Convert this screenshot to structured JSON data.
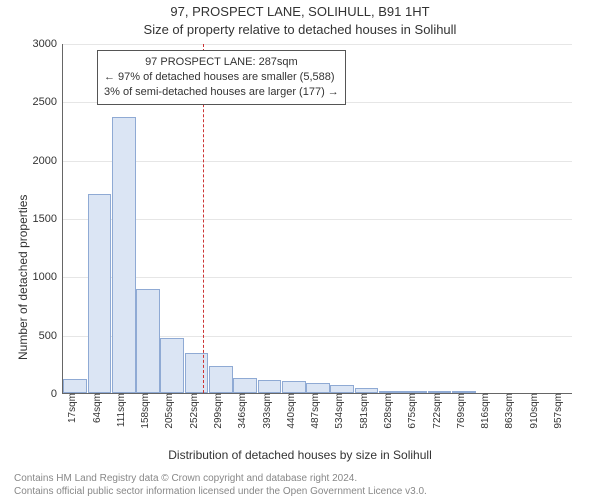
{
  "title_line1": "97, PROSPECT LANE, SOLIHULL, B91 1HT",
  "title_line2": "Size of property relative to detached houses in Solihull",
  "y_axis_label": "Number of detached properties",
  "x_axis_label": "Distribution of detached houses by size in Solihull",
  "footer_line1": "Contains HM Land Registry data © Crown copyright and database right 2024.",
  "footer_line2": "Contains official public sector information licensed under the Open Government Licence v3.0.",
  "chart": {
    "type": "histogram",
    "ylim": [
      0,
      3000
    ],
    "ytick_step": 500,
    "xtick_start": 17,
    "xtick_step": 47,
    "xtick_count": 21,
    "xtick_unit": "sqm",
    "bar_fill": "#dbe5f4",
    "bar_stroke": "#8faad4",
    "background_color": "#ffffff",
    "grid_color": "#e6e6e6",
    "axis_color": "#666666",
    "bars": [
      120,
      1710,
      2370,
      890,
      470,
      340,
      230,
      130,
      115,
      105,
      85,
      65,
      45,
      5,
      5,
      5,
      5,
      0,
      0,
      0,
      0
    ],
    "marker_value": 287,
    "marker_color": "#cc3333",
    "marker_dash": "dashed"
  },
  "info_box": {
    "line1": "97 PROSPECT LANE: 287sqm",
    "line2": "← 97% of detached houses are smaller (5,588)",
    "line3": "3% of semi-detached houses are larger (177) →"
  },
  "fonts": {
    "title_size_pt": 13,
    "axis_label_size_pt": 12,
    "tick_size_pt": 11,
    "footer_size_pt": 10,
    "footer_color": "#888888"
  }
}
